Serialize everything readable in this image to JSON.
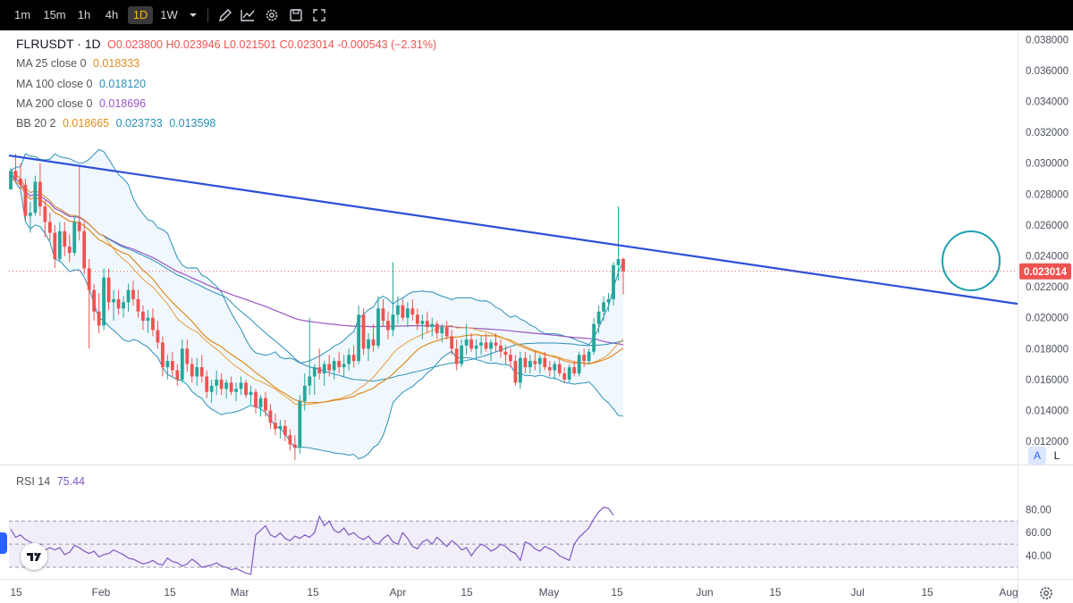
{
  "toolbar": {
    "intervals": [
      "1m",
      "15m",
      "1h",
      "4h",
      "1D",
      "1W"
    ],
    "active_interval": "1D",
    "icons": [
      "chevron-down-icon",
      "pencil-icon",
      "line-chart-icon",
      "gear-icon",
      "save-icon",
      "fullscreen-icon"
    ]
  },
  "legend": {
    "symbol": "FLRUSDT · 1D",
    "ohlc": "O0.023800 H0.023946 L0.021501 C0.023014 -0.000543 (−2.31%)",
    "ma25_label": "MA 25 close 0",
    "ma25_value": "0.018333",
    "ma100_label": "MA 100 close 0",
    "ma100_value": "0.018120",
    "ma200_label": "MA 200 close 0",
    "ma200_value": "0.018696",
    "bb_label": "BB 20 2",
    "bb_basis": "0.018665",
    "bb_upper": "0.023733",
    "bb_lower": "0.013598",
    "rsi_label": "RSI 14",
    "rsi_value": "75.44"
  },
  "price_tag": "0.023014",
  "scale_buttons": [
    "A",
    "L"
  ],
  "colors": {
    "up": "#26a69a",
    "down": "#ef5350",
    "trendline": "#2b4fd8",
    "ma25": "#e08a1e",
    "ma100": "#2a8fb8",
    "ma200": "#9a56c2",
    "bb": "#2a8fb8",
    "rsi": "#7e57c2",
    "annotation": "#1ea0b0"
  },
  "chart_data": {
    "type": "candlestick",
    "price_axis": {
      "ticks": [
        "0.038000",
        "0.036000",
        "0.034000",
        "0.032000",
        "0.030000",
        "0.028000",
        "0.026000",
        "0.024000",
        "0.022000",
        "0.020000",
        "0.018000",
        "0.016000",
        "0.014000",
        "0.012000"
      ],
      "ylim": [
        0.0105,
        0.0386
      ]
    },
    "rsi_axis": {
      "ticks": [
        "80.00",
        "60.00",
        "40.00"
      ],
      "ylim": [
        20,
        88
      ],
      "band": [
        30,
        70
      ],
      "mid": 50
    },
    "time_axis": {
      "labels": [
        "15",
        "Feb",
        "15",
        "Mar",
        "15",
        "Apr",
        "15",
        "May",
        "15",
        "Jun",
        "15",
        "Jul",
        "15",
        "Aug"
      ]
    },
    "candles_ohlc": [
      [
        0.0283,
        0.0297,
        0.0283,
        0.0295
      ],
      [
        0.0295,
        0.0306,
        0.0288,
        0.029
      ],
      [
        0.029,
        0.03,
        0.0283,
        0.0286
      ],
      [
        0.0286,
        0.029,
        0.0262,
        0.0266
      ],
      [
        0.0266,
        0.0275,
        0.0255,
        0.0268
      ],
      [
        0.0268,
        0.0292,
        0.0266,
        0.0288
      ],
      [
        0.0288,
        0.03,
        0.0266,
        0.0272
      ],
      [
        0.0272,
        0.0276,
        0.0252,
        0.0262
      ],
      [
        0.0262,
        0.0268,
        0.025,
        0.0255
      ],
      [
        0.0255,
        0.026,
        0.0232,
        0.0238
      ],
      [
        0.0238,
        0.0262,
        0.0236,
        0.0256
      ],
      [
        0.0256,
        0.0262,
        0.024,
        0.0246
      ],
      [
        0.0246,
        0.0254,
        0.0236,
        0.0242
      ],
      [
        0.0242,
        0.0266,
        0.024,
        0.0262
      ],
      [
        0.0262,
        0.0298,
        0.025,
        0.0256
      ],
      [
        0.0256,
        0.0262,
        0.0228,
        0.0232
      ],
      [
        0.0232,
        0.0238,
        0.018,
        0.0218
      ],
      [
        0.0218,
        0.0222,
        0.0198,
        0.0204
      ],
      [
        0.0204,
        0.0216,
        0.019,
        0.0195
      ],
      [
        0.0195,
        0.0232,
        0.0192,
        0.0226
      ],
      [
        0.0226,
        0.0232,
        0.0205,
        0.021
      ],
      [
        0.021,
        0.0218,
        0.0198,
        0.0212
      ],
      [
        0.0212,
        0.0218,
        0.0202,
        0.0206
      ],
      [
        0.0206,
        0.0214,
        0.02,
        0.021
      ],
      [
        0.021,
        0.0222,
        0.0204,
        0.0218
      ],
      [
        0.0218,
        0.0224,
        0.0208,
        0.0212
      ],
      [
        0.0212,
        0.0218,
        0.02,
        0.0204
      ],
      [
        0.0204,
        0.0208,
        0.0192,
        0.0198
      ],
      [
        0.0198,
        0.0205,
        0.019,
        0.02
      ],
      [
        0.02,
        0.0206,
        0.0188,
        0.0192
      ],
      [
        0.0192,
        0.0198,
        0.018,
        0.0184
      ],
      [
        0.0184,
        0.0188,
        0.0162,
        0.0168
      ],
      [
        0.0168,
        0.0176,
        0.016,
        0.0172
      ],
      [
        0.0172,
        0.0178,
        0.0162,
        0.0166
      ],
      [
        0.0166,
        0.017,
        0.0156,
        0.016
      ],
      [
        0.016,
        0.0186,
        0.0158,
        0.018
      ],
      [
        0.018,
        0.0186,
        0.0165,
        0.017
      ],
      [
        0.017,
        0.0174,
        0.0158,
        0.0162
      ],
      [
        0.0162,
        0.0174,
        0.0156,
        0.0168
      ],
      [
        0.0168,
        0.0176,
        0.0158,
        0.0162
      ],
      [
        0.0162,
        0.0166,
        0.0148,
        0.0152
      ],
      [
        0.0152,
        0.016,
        0.0145,
        0.0156
      ],
      [
        0.0156,
        0.0166,
        0.015,
        0.016
      ],
      [
        0.016,
        0.0164,
        0.015,
        0.0154
      ],
      [
        0.0154,
        0.016,
        0.0148,
        0.0158
      ],
      [
        0.0158,
        0.0162,
        0.015,
        0.0152
      ],
      [
        0.0152,
        0.0158,
        0.0146,
        0.0154
      ],
      [
        0.0154,
        0.0162,
        0.015,
        0.0158
      ],
      [
        0.0158,
        0.016,
        0.0148,
        0.015
      ],
      [
        0.015,
        0.0156,
        0.0144,
        0.0152
      ],
      [
        0.0152,
        0.0154,
        0.0138,
        0.0142
      ],
      [
        0.0142,
        0.015,
        0.0136,
        0.0148
      ],
      [
        0.0148,
        0.0152,
        0.0136,
        0.014
      ],
      [
        0.014,
        0.0144,
        0.0128,
        0.0132
      ],
      [
        0.0132,
        0.0138,
        0.0124,
        0.0128
      ],
      [
        0.0128,
        0.0134,
        0.0122,
        0.013
      ],
      [
        0.013,
        0.0134,
        0.012,
        0.0124
      ],
      [
        0.0124,
        0.0128,
        0.0114,
        0.0118
      ],
      [
        0.0118,
        0.0124,
        0.0108,
        0.0116
      ],
      [
        0.0116,
        0.015,
        0.0112,
        0.0146
      ],
      [
        0.0146,
        0.0164,
        0.014,
        0.0156
      ],
      [
        0.0156,
        0.02,
        0.015,
        0.0162
      ],
      [
        0.0162,
        0.017,
        0.015,
        0.0168
      ],
      [
        0.0168,
        0.018,
        0.016,
        0.0164
      ],
      [
        0.0164,
        0.0172,
        0.0156,
        0.017
      ],
      [
        0.017,
        0.0176,
        0.0162,
        0.0166
      ],
      [
        0.0166,
        0.0174,
        0.016,
        0.0172
      ],
      [
        0.0172,
        0.0178,
        0.0164,
        0.0168
      ],
      [
        0.0168,
        0.0176,
        0.0162,
        0.017
      ],
      [
        0.017,
        0.018,
        0.0166,
        0.0176
      ],
      [
        0.0176,
        0.0182,
        0.0168,
        0.0172
      ],
      [
        0.0172,
        0.0208,
        0.017,
        0.0202
      ],
      [
        0.0202,
        0.0206,
        0.0176,
        0.018
      ],
      [
        0.018,
        0.019,
        0.0172,
        0.0186
      ],
      [
        0.0186,
        0.0196,
        0.0178,
        0.0182
      ],
      [
        0.0182,
        0.0214,
        0.018,
        0.0206
      ],
      [
        0.0206,
        0.0212,
        0.0194,
        0.0198
      ],
      [
        0.0198,
        0.0204,
        0.0186,
        0.0192
      ],
      [
        0.0192,
        0.0236,
        0.0188,
        0.0202
      ],
      [
        0.0202,
        0.0214,
        0.0196,
        0.0208
      ],
      [
        0.0208,
        0.0212,
        0.0198,
        0.02
      ],
      [
        0.02,
        0.021,
        0.0194,
        0.0206
      ],
      [
        0.0206,
        0.0212,
        0.0198,
        0.0202
      ],
      [
        0.0202,
        0.0206,
        0.0192,
        0.0196
      ],
      [
        0.0196,
        0.0202,
        0.0186,
        0.0198
      ],
      [
        0.0198,
        0.0204,
        0.019,
        0.0194
      ],
      [
        0.0194,
        0.02,
        0.0188,
        0.0196
      ],
      [
        0.0196,
        0.0198,
        0.0186,
        0.019
      ],
      [
        0.019,
        0.0196,
        0.0184,
        0.0194
      ],
      [
        0.0194,
        0.0198,
        0.0186,
        0.0188
      ],
      [
        0.0188,
        0.0192,
        0.0176,
        0.018
      ],
      [
        0.018,
        0.0186,
        0.0166,
        0.017
      ],
      [
        0.017,
        0.0186,
        0.0168,
        0.0182
      ],
      [
        0.0182,
        0.0196,
        0.0176,
        0.0186
      ],
      [
        0.0186,
        0.019,
        0.0178,
        0.018
      ],
      [
        0.018,
        0.0186,
        0.0174,
        0.0182
      ],
      [
        0.0182,
        0.0188,
        0.0176,
        0.0184
      ],
      [
        0.0184,
        0.019,
        0.0178,
        0.018
      ],
      [
        0.018,
        0.0186,
        0.0172,
        0.0184
      ],
      [
        0.0184,
        0.019,
        0.0178,
        0.0182
      ],
      [
        0.0182,
        0.0186,
        0.0174,
        0.0178
      ],
      [
        0.0178,
        0.0182,
        0.017,
        0.0176
      ],
      [
        0.0176,
        0.018,
        0.0168,
        0.0172
      ],
      [
        0.0172,
        0.0176,
        0.0156,
        0.0158
      ],
      [
        0.0158,
        0.0178,
        0.0154,
        0.0174
      ],
      [
        0.0174,
        0.0178,
        0.0164,
        0.0168
      ],
      [
        0.0168,
        0.0176,
        0.0164,
        0.0172
      ],
      [
        0.0172,
        0.0178,
        0.0166,
        0.017
      ],
      [
        0.017,
        0.0176,
        0.0164,
        0.0174
      ],
      [
        0.0174,
        0.0178,
        0.0166,
        0.0168
      ],
      [
        0.0168,
        0.0172,
        0.0162,
        0.0166
      ],
      [
        0.0166,
        0.0172,
        0.016,
        0.017
      ],
      [
        0.017,
        0.0174,
        0.0162,
        0.0164
      ],
      [
        0.0164,
        0.0168,
        0.0158,
        0.016
      ],
      [
        0.016,
        0.017,
        0.0158,
        0.0168
      ],
      [
        0.0168,
        0.0172,
        0.0162,
        0.0164
      ],
      [
        0.0164,
        0.0178,
        0.0162,
        0.0176
      ],
      [
        0.0176,
        0.018,
        0.0168,
        0.0172
      ],
      [
        0.0172,
        0.018,
        0.017,
        0.0178
      ],
      [
        0.0178,
        0.02,
        0.0176,
        0.0196
      ],
      [
        0.0196,
        0.0208,
        0.019,
        0.0204
      ],
      [
        0.0204,
        0.0214,
        0.0198,
        0.021
      ],
      [
        0.021,
        0.0216,
        0.0204,
        0.0212
      ],
      [
        0.0212,
        0.0236,
        0.0208,
        0.0234
      ],
      [
        0.0234,
        0.0272,
        0.0224,
        0.0238
      ],
      [
        0.0238,
        0.0239,
        0.0215,
        0.023
      ]
    ],
    "rsi_values": [
      63,
      56,
      58,
      54,
      52,
      49,
      50,
      45,
      47,
      45,
      47,
      41,
      43,
      49,
      47,
      44,
      42,
      44,
      39,
      41,
      42,
      45,
      43,
      41,
      38,
      37,
      35,
      33,
      34,
      36,
      33,
      32,
      38,
      35,
      34,
      31,
      33,
      37,
      34,
      30,
      31,
      32,
      34,
      31,
      30,
      28,
      29,
      27,
      25,
      24,
      58,
      62,
      66,
      58,
      56,
      60,
      55,
      53,
      57,
      55,
      58,
      56,
      60,
      74,
      66,
      70,
      62,
      60,
      64,
      58,
      60,
      56,
      54,
      57,
      52,
      50,
      55,
      58,
      52,
      50,
      60,
      55,
      48,
      46,
      52,
      54,
      50,
      56,
      52,
      48,
      53,
      50,
      45,
      47,
      40,
      46,
      50,
      48,
      44,
      46,
      50,
      48,
      44,
      42,
      36,
      52,
      50,
      46,
      44,
      48,
      46,
      44,
      40,
      38,
      36,
      50,
      56,
      60,
      64,
      72,
      78,
      82,
      81,
      75
    ]
  }
}
